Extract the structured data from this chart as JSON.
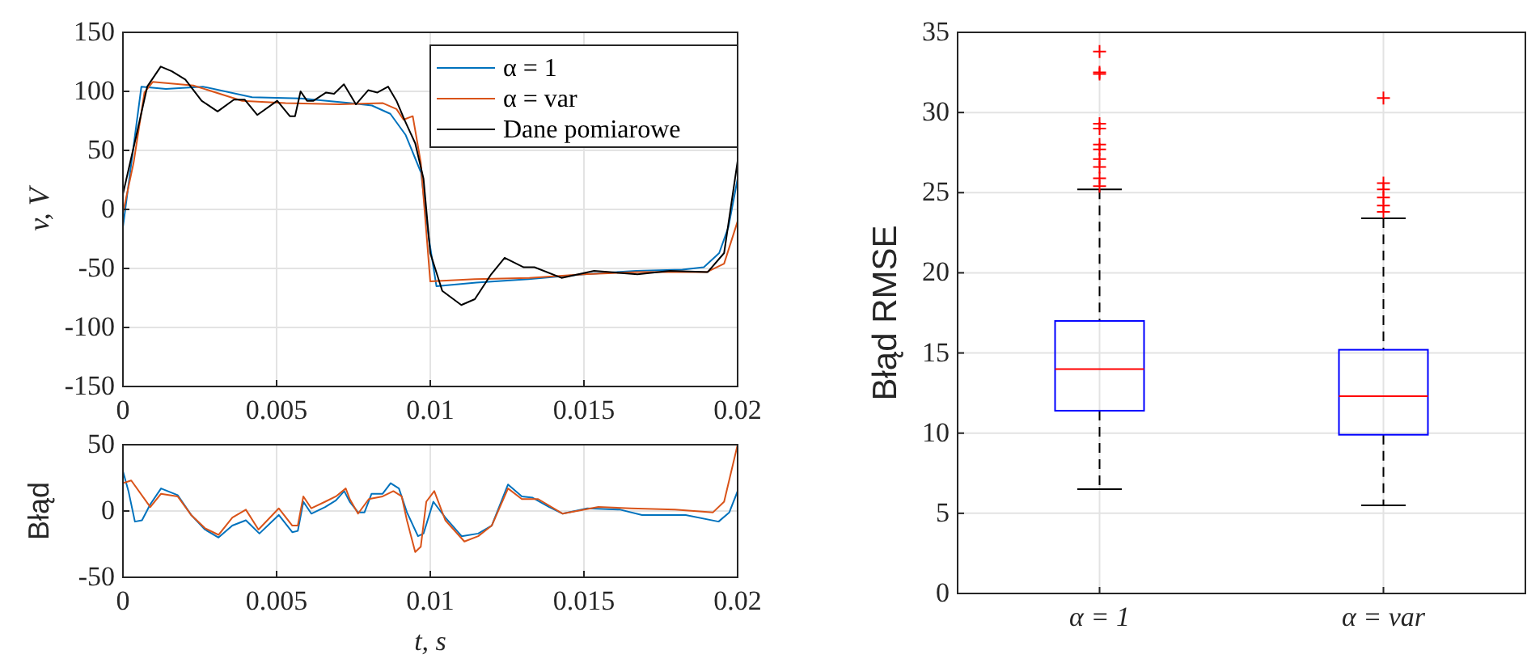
{
  "chart_data": [
    {
      "type": "line",
      "ylabel": "v, V",
      "xlim": [
        0,
        0.02
      ],
      "ylim": [
        -150,
        150
      ],
      "xticks": [
        0,
        0.005,
        0.01,
        0.015,
        0.02
      ],
      "yticks": [
        -150,
        -100,
        -50,
        0,
        50,
        100,
        150
      ],
      "grid": true,
      "legend": "top right",
      "marker": "none",
      "line_style": "solid",
      "series": [
        {
          "name": "α = 1",
          "color": "#0072bd",
          "x": [
            0,
            0.0006,
            0.0014,
            0.0026,
            0.0042,
            0.0058,
            0.0074,
            0.0081,
            0.0087,
            0.0092,
            0.0097,
            0.00995,
            0.0102,
            0.0115,
            0.0132,
            0.015,
            0.0167,
            0.0182,
            0.0189,
            0.0194,
            0.0197,
            0.02
          ],
          "values": [
            -15,
            104,
            102,
            104,
            95,
            94,
            90,
            88,
            81,
            63,
            31,
            -24,
            -65,
            -62,
            -59,
            -55,
            -52,
            -51,
            -49,
            -37,
            -15,
            26
          ]
        },
        {
          "name": "α = var",
          "color": "#d95319",
          "x": [
            0,
            0.00035,
            0.0007,
            0.00097,
            0.00229,
            0.00388,
            0.00529,
            0.00705,
            0.00846,
            0.0089,
            0.00913,
            0.00943,
            0.00969,
            0.01,
            0.01145,
            0.01322,
            0.01498,
            0.01674,
            0.019,
            0.01956,
            0.02
          ],
          "values": [
            -3,
            40,
            99,
            108,
            105,
            92,
            90,
            89,
            90,
            85,
            76,
            79,
            40,
            -61,
            -59,
            -58,
            -55,
            -53,
            -53,
            -46,
            -10
          ]
        },
        {
          "name": "Dane pomiarowe",
          "color": "#000000",
          "x": [
            0,
            0.00044,
            0.00079,
            0.00123,
            0.00159,
            0.00203,
            0.00256,
            0.00308,
            0.00361,
            0.00396,
            0.00437,
            0.00502,
            0.00543,
            0.0056,
            0.00578,
            0.00599,
            0.0062,
            0.00661,
            0.00687,
            0.00719,
            0.00758,
            0.00798,
            0.00828,
            0.00863,
            0.0089,
            0.00916,
            0.00951,
            0.00978,
            0.01,
            0.01039,
            0.01101,
            0.01145,
            0.01198,
            0.01242,
            0.01304,
            0.01339,
            0.01427,
            0.01533,
            0.01674,
            0.0178,
            0.01903,
            0.01956,
            0.02
          ],
          "values": [
            13,
            63,
            104,
            121,
            117,
            110,
            92,
            83,
            93,
            93,
            80,
            92,
            79,
            79,
            100,
            92,
            92,
            99,
            98,
            106,
            89,
            101,
            99,
            104,
            92,
            76,
            56,
            26,
            -37,
            -69,
            -81,
            -76,
            -55,
            -41,
            -49,
            -49,
            -58,
            -52,
            -55,
            -52,
            -53,
            -37,
            41
          ]
        }
      ]
    },
    {
      "type": "line",
      "ylabel": "Błąd",
      "xlabel": "t, s",
      "xlim": [
        0,
        0.02
      ],
      "ylim": [
        -50,
        50
      ],
      "xticks": [
        0,
        0.005,
        0.01,
        0.015,
        0.02
      ],
      "yticks": [
        -50,
        0,
        50
      ],
      "grid": true,
      "marker": "none",
      "line_style": "solid",
      "series": [
        {
          "color": "#0072bd",
          "x": [
            0,
            0.00018,
            0.00039,
            0.00062,
            0.00089,
            0.00124,
            0.00178,
            0.00222,
            0.00267,
            0.00311,
            0.00356,
            0.004,
            0.00444,
            0.00507,
            0.00551,
            0.00569,
            0.00587,
            0.00613,
            0.00658,
            0.00693,
            0.0072,
            0.00738,
            0.00765,
            0.00786,
            0.00809,
            0.00845,
            0.00871,
            0.00898,
            0.00924,
            0.0096,
            0.00978,
            0.0101,
            0.01049,
            0.01102,
            0.01156,
            0.012,
            0.01253,
            0.01298,
            0.01333,
            0.01387,
            0.01431,
            0.01511,
            0.01618,
            0.01689,
            0.01831,
            0.01938,
            0.01973,
            0.02
          ],
          "values": [
            30,
            15,
            -8,
            -7,
            5,
            17,
            12,
            -3,
            -14,
            -20,
            -11,
            -7,
            -17,
            -3,
            -16,
            -15,
            7,
            -2,
            3,
            8,
            15,
            7,
            -1,
            -1,
            13,
            13,
            21,
            17,
            -1,
            -19,
            -17,
            7,
            -5,
            -19,
            -17,
            -11,
            20,
            11,
            10,
            3,
            -2,
            2,
            1,
            -3,
            -3,
            -8,
            -1,
            15
          ]
        },
        {
          "color": "#d95319",
          "x": [
            0,
            0.00027,
            0.00089,
            0.00124,
            0.00178,
            0.00222,
            0.00267,
            0.00311,
            0.00356,
            0.004,
            0.00441,
            0.00507,
            0.00551,
            0.00569,
            0.00587,
            0.00613,
            0.00658,
            0.00693,
            0.00725,
            0.00738,
            0.00765,
            0.008,
            0.00845,
            0.0088,
            0.00907,
            0.00924,
            0.00951,
            0.00969,
            0.00987,
            0.01013,
            0.01049,
            0.01111,
            0.01156,
            0.012,
            0.01253,
            0.01298,
            0.01351,
            0.01431,
            0.01547,
            0.01653,
            0.01796,
            0.0192,
            0.01956,
            0.02
          ],
          "values": [
            21,
            23,
            3,
            13,
            11,
            -3,
            -13,
            -18,
            -5,
            1,
            -14,
            2,
            -11,
            -11,
            11,
            2,
            7,
            11,
            17,
            9,
            -2,
            9,
            11,
            15,
            11,
            -7,
            -31,
            -27,
            7,
            15,
            -7,
            -23,
            -19,
            -11,
            17,
            9,
            9,
            -2,
            3,
            2,
            1,
            -1,
            7,
            50
          ]
        }
      ]
    },
    {
      "type": "box",
      "ylabel": "Błąd RMSE",
      "categories": [
        "α = 1",
        "α = var"
      ],
      "ylim": [
        0,
        35
      ],
      "yticks": [
        0,
        5,
        10,
        15,
        20,
        25,
        30,
        35
      ],
      "grid": true,
      "series": [
        {
          "color": "#0000ff",
          "boxes": [
            {
              "low": 6.5,
              "q1": 11.4,
              "median": 14.0,
              "q3": 17.0,
              "high": 25.2,
              "outliers": [
                33.8,
                32.5,
                32.4,
                29.3,
                29.0,
                28.0,
                27.7,
                27.1,
                26.6,
                25.9,
                25.4
              ]
            },
            {
              "low": 5.5,
              "q1": 9.9,
              "median": 12.3,
              "q3": 15.2,
              "high": 23.4,
              "outliers": [
                30.9,
                25.6,
                25.2,
                24.7,
                24.2,
                23.8
              ]
            }
          ]
        }
      ]
    }
  ]
}
